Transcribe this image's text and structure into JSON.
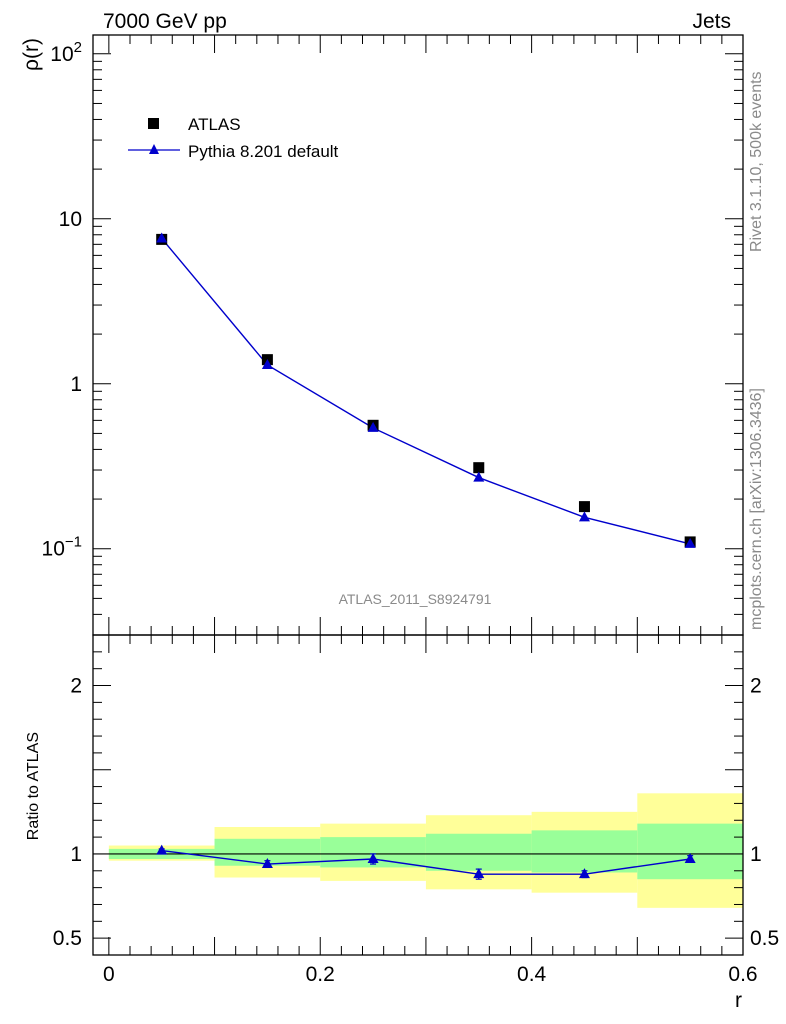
{
  "header": {
    "left": "7000 GeV pp",
    "right": "Jets"
  },
  "side": {
    "rivet": "Rivet 3.1.10,  500k events",
    "mcplots": "mcplots.cern.ch [arXiv:1306.3436]"
  },
  "colors": {
    "data": "#000000",
    "mc": "#0000cc",
    "band_inner": "#99ff99",
    "band_outer": "#ffff99"
  },
  "chart_data": [
    {
      "type": "scatter",
      "ylabel": "ρ(r)",
      "xlabel": "r",
      "scale": "log",
      "xlim": [
        -0.015,
        0.6
      ],
      "ylim": [
        0.03,
        130
      ],
      "yticks": [
        {
          "value": 100,
          "base": "10",
          "exp": "2"
        },
        {
          "value": 10,
          "label": "10"
        },
        {
          "value": 1,
          "label": "1"
        },
        {
          "value": 0.1,
          "base": "10",
          "exp": "−1"
        }
      ],
      "watermark": "ATLAS_2011_S8924791",
      "legend": "top-left",
      "series": [
        {
          "name": "ATLAS",
          "marker": "square",
          "x": [
            0.05,
            0.15,
            0.25,
            0.35,
            0.45,
            0.55
          ],
          "y": [
            7.5,
            1.4,
            0.56,
            0.31,
            0.18,
            0.11
          ]
        },
        {
          "name": "Pythia 8.201 default",
          "marker": "triangle",
          "line": true,
          "x": [
            0.05,
            0.15,
            0.25,
            0.35,
            0.45,
            0.55
          ],
          "y": [
            7.6,
            1.3,
            0.54,
            0.27,
            0.155,
            0.107
          ]
        }
      ]
    },
    {
      "type": "line",
      "ylabel": "Ratio to ATLAS",
      "xlabel": "r",
      "xlim": [
        -0.015,
        0.6
      ],
      "ylim": [
        0.4,
        2.3
      ],
      "yticks": [
        {
          "value": 0.5,
          "label": "0.5"
        },
        {
          "value": 1,
          "label": "1"
        },
        {
          "value": 2,
          "label": "2"
        }
      ],
      "xticks": [
        {
          "value": 0,
          "label": "0"
        },
        {
          "value": 0.2,
          "label": "0.2"
        },
        {
          "value": 0.4,
          "label": "0.4"
        },
        {
          "value": 0.6,
          "label": "0.6"
        }
      ],
      "bands": [
        {
          "x0": 0.0,
          "x1": 0.1,
          "inner": [
            0.97,
            1.03
          ],
          "outer": [
            0.96,
            1.05
          ]
        },
        {
          "x0": 0.1,
          "x1": 0.2,
          "inner": [
            0.93,
            1.09
          ],
          "outer": [
            0.86,
            1.16
          ]
        },
        {
          "x0": 0.2,
          "x1": 0.3,
          "inner": [
            0.92,
            1.1
          ],
          "outer": [
            0.84,
            1.18
          ]
        },
        {
          "x0": 0.3,
          "x1": 0.4,
          "inner": [
            0.9,
            1.12
          ],
          "outer": [
            0.79,
            1.23
          ]
        },
        {
          "x0": 0.4,
          "x1": 0.5,
          "inner": [
            0.89,
            1.14
          ],
          "outer": [
            0.77,
            1.25
          ]
        },
        {
          "x0": 0.5,
          "x1": 0.6,
          "inner": [
            0.85,
            1.18
          ],
          "outer": [
            0.68,
            1.36
          ]
        }
      ],
      "series": [
        {
          "name": "Pythia 8.201 default",
          "x": [
            0.05,
            0.15,
            0.25,
            0.35,
            0.45,
            0.55
          ],
          "y": [
            1.02,
            0.94,
            0.97,
            0.88,
            0.88,
            0.97
          ],
          "err": [
            0.01,
            0.02,
            0.03,
            0.03,
            0.02,
            0.02
          ]
        }
      ]
    }
  ]
}
